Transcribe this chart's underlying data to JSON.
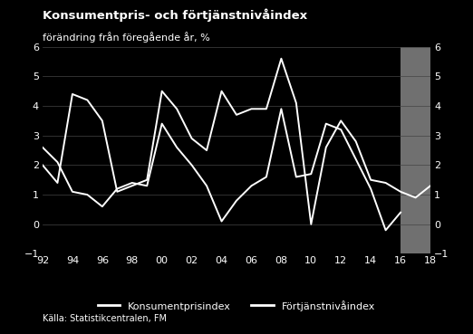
{
  "title": "Konsumentpris- och förtjänstnivåindex",
  "subtitle": "förändring från föregående år, %",
  "source": "Källa: Statistikcentralen, FM",
  "background_color": "#000000",
  "plot_bg_color": "#000000",
  "forecast_bg_color": "#707070",
  "text_color": "#ffffff",
  "grid_color": "#444444",
  "line_color": "#ffffff",
  "ylim": [
    -1,
    6
  ],
  "yticks": [
    -1,
    0,
    1,
    2,
    3,
    4,
    5,
    6
  ],
  "x_labels": [
    "92",
    "94",
    "96",
    "98",
    "00",
    "02",
    "04",
    "06",
    "08",
    "10",
    "12",
    "14",
    "16",
    "18"
  ],
  "xtick_years": [
    1992,
    1994,
    1996,
    1998,
    2000,
    2002,
    2004,
    2006,
    2008,
    2010,
    2012,
    2014,
    2016,
    2018
  ],
  "konsument_years": [
    1992,
    1993,
    1994,
    1995,
    1996,
    1997,
    1998,
    1999,
    2000,
    2001,
    2002,
    2003,
    2004,
    2005,
    2006,
    2007,
    2008,
    2009,
    2010,
    2011,
    2012,
    2013,
    2014,
    2015,
    2016
  ],
  "konsument_values": [
    2.6,
    2.1,
    1.1,
    1.0,
    0.6,
    1.2,
    1.4,
    1.3,
    3.4,
    2.6,
    2.0,
    1.3,
    0.1,
    0.8,
    1.3,
    1.6,
    3.9,
    1.6,
    1.7,
    3.4,
    3.2,
    2.2,
    1.2,
    -0.2,
    0.4
  ],
  "fortjanst_years": [
    1992,
    1993,
    1994,
    1995,
    1996,
    1997,
    1998,
    1999,
    2000,
    2001,
    2002,
    2003,
    2004,
    2005,
    2006,
    2007,
    2008,
    2009,
    2010,
    2011,
    2012,
    2013,
    2014,
    2015,
    2016,
    2017,
    2018
  ],
  "fortjanst_values": [
    2.0,
    1.4,
    4.4,
    4.2,
    3.5,
    1.1,
    1.3,
    1.5,
    4.5,
    3.9,
    2.9,
    2.5,
    4.5,
    3.7,
    3.9,
    3.9,
    5.6,
    4.1,
    0.0,
    2.6,
    3.5,
    2.8,
    1.5,
    1.4,
    1.1,
    0.9,
    1.3
  ],
  "legend_1": "Konsumentprisindex",
  "legend_2": "Förtjänstnivåindex",
  "title_fontsize": 9.5,
  "subtitle_fontsize": 8,
  "tick_fontsize": 8,
  "legend_fontsize": 8,
  "source_fontsize": 7
}
